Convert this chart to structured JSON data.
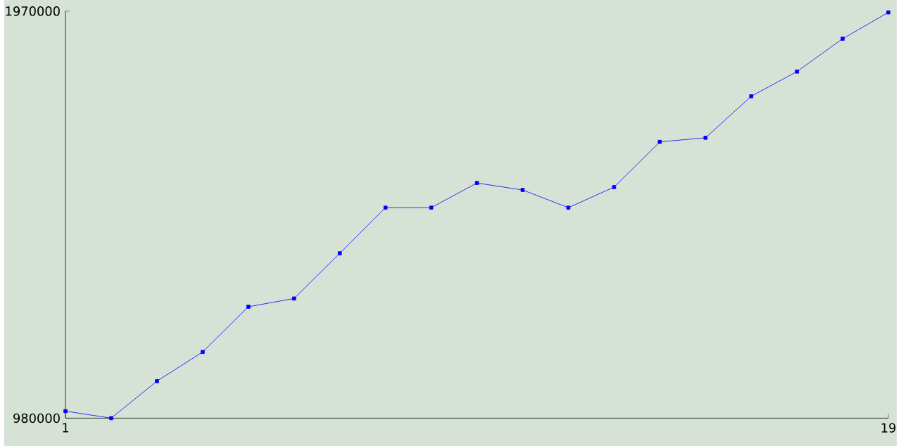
{
  "chart_data": {
    "type": "line",
    "x": [
      1,
      2,
      3,
      4,
      5,
      6,
      7,
      8,
      9,
      10,
      11,
      12,
      13,
      14,
      15,
      16,
      17,
      18,
      19
    ],
    "series": [
      {
        "color": "#0000ff",
        "values": [
          997000,
          980000,
          1070000,
          1141000,
          1251000,
          1271000,
          1381000,
          1492000,
          1492000,
          1552000,
          1535000,
          1492000,
          1542000,
          1652000,
          1662000,
          1763000,
          1823000,
          1903000,
          1967000
        ]
      }
    ],
    "xlim": [
      1,
      19
    ],
    "xticks": [
      1,
      19
    ],
    "ylim": [
      980000,
      1970000
    ],
    "yticks": [
      980000,
      1970000
    ],
    "grid": false,
    "marker": "square",
    "line_style": "solid"
  }
}
